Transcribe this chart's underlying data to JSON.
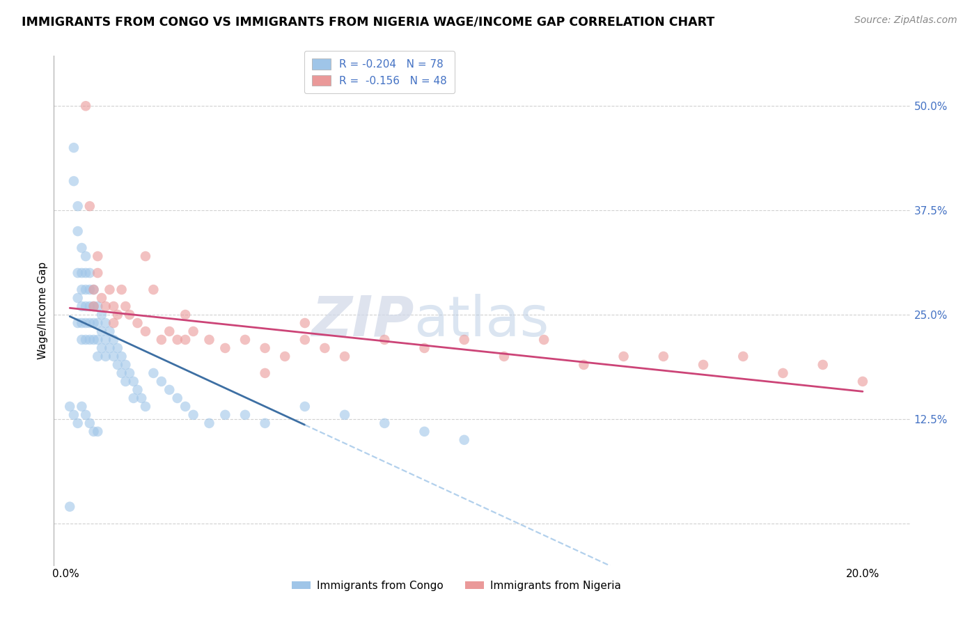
{
  "title": "IMMIGRANTS FROM CONGO VS IMMIGRANTS FROM NIGERIA WAGE/INCOME GAP CORRELATION CHART",
  "source": "Source: ZipAtlas.com",
  "ylabel": "Wage/Income Gap",
  "x_ticks": [
    0.0,
    0.04,
    0.08,
    0.12,
    0.16,
    0.2
  ],
  "x_tick_labels": [
    "0.0%",
    "",
    "",
    "",
    "",
    "20.0%"
  ],
  "y_ticks_right": [
    0.0,
    0.125,
    0.25,
    0.375,
    0.5
  ],
  "y_tick_labels_right": [
    "",
    "12.5%",
    "25.0%",
    "37.5%",
    "50.0%"
  ],
  "xlim": [
    -0.003,
    0.212
  ],
  "ylim": [
    -0.05,
    0.56
  ],
  "congo_color": "#9fc5e8",
  "nigeria_color": "#ea9999",
  "congo_line_color": "#3d6fa3",
  "nigeria_line_color": "#cc4477",
  "congo_R": -0.204,
  "congo_N": 78,
  "nigeria_R": -0.156,
  "nigeria_N": 48,
  "background_color": "#ffffff",
  "grid_color": "#cccccc",
  "watermark_zip": "ZIP",
  "watermark_atlas": "atlas",
  "legend_label_congo": "Immigrants from Congo",
  "legend_label_nigeria": "Immigrants from Nigeria",
  "congo_scatter_x": [
    0.001,
    0.002,
    0.002,
    0.003,
    0.003,
    0.003,
    0.003,
    0.003,
    0.004,
    0.004,
    0.004,
    0.004,
    0.004,
    0.004,
    0.005,
    0.005,
    0.005,
    0.005,
    0.005,
    0.005,
    0.006,
    0.006,
    0.006,
    0.006,
    0.006,
    0.007,
    0.007,
    0.007,
    0.007,
    0.008,
    0.008,
    0.008,
    0.008,
    0.009,
    0.009,
    0.009,
    0.01,
    0.01,
    0.01,
    0.011,
    0.011,
    0.012,
    0.012,
    0.013,
    0.013,
    0.014,
    0.014,
    0.015,
    0.015,
    0.016,
    0.017,
    0.017,
    0.018,
    0.019,
    0.02,
    0.022,
    0.024,
    0.026,
    0.028,
    0.03,
    0.032,
    0.036,
    0.04,
    0.045,
    0.05,
    0.06,
    0.07,
    0.08,
    0.09,
    0.1,
    0.001,
    0.002,
    0.003,
    0.004,
    0.005,
    0.006,
    0.007,
    0.008
  ],
  "congo_scatter_y": [
    0.02,
    0.45,
    0.41,
    0.38,
    0.35,
    0.3,
    0.27,
    0.24,
    0.33,
    0.3,
    0.28,
    0.26,
    0.24,
    0.22,
    0.32,
    0.3,
    0.28,
    0.26,
    0.24,
    0.22,
    0.3,
    0.28,
    0.26,
    0.24,
    0.22,
    0.28,
    0.26,
    0.24,
    0.22,
    0.26,
    0.24,
    0.22,
    0.2,
    0.25,
    0.23,
    0.21,
    0.24,
    0.22,
    0.2,
    0.23,
    0.21,
    0.22,
    0.2,
    0.21,
    0.19,
    0.2,
    0.18,
    0.19,
    0.17,
    0.18,
    0.17,
    0.15,
    0.16,
    0.15,
    0.14,
    0.18,
    0.17,
    0.16,
    0.15,
    0.14,
    0.13,
    0.12,
    0.13,
    0.13,
    0.12,
    0.14,
    0.13,
    0.12,
    0.11,
    0.1,
    0.14,
    0.13,
    0.12,
    0.14,
    0.13,
    0.12,
    0.11,
    0.11
  ],
  "nigeria_scatter_x": [
    0.005,
    0.006,
    0.007,
    0.008,
    0.009,
    0.01,
    0.011,
    0.012,
    0.013,
    0.014,
    0.015,
    0.016,
    0.018,
    0.02,
    0.022,
    0.024,
    0.026,
    0.028,
    0.03,
    0.032,
    0.036,
    0.04,
    0.045,
    0.05,
    0.055,
    0.06,
    0.065,
    0.07,
    0.08,
    0.09,
    0.1,
    0.11,
    0.12,
    0.13,
    0.14,
    0.15,
    0.16,
    0.17,
    0.18,
    0.19,
    0.2,
    0.008,
    0.012,
    0.02,
    0.03,
    0.05,
    0.007,
    0.06
  ],
  "nigeria_scatter_y": [
    0.5,
    0.38,
    0.28,
    0.3,
    0.27,
    0.26,
    0.28,
    0.26,
    0.25,
    0.28,
    0.26,
    0.25,
    0.24,
    0.23,
    0.28,
    0.22,
    0.23,
    0.22,
    0.22,
    0.23,
    0.22,
    0.21,
    0.22,
    0.21,
    0.2,
    0.22,
    0.21,
    0.2,
    0.22,
    0.21,
    0.22,
    0.2,
    0.22,
    0.19,
    0.2,
    0.2,
    0.19,
    0.2,
    0.18,
    0.19,
    0.17,
    0.32,
    0.24,
    0.32,
    0.25,
    0.18,
    0.26,
    0.24
  ],
  "congo_trend_x0": 0.001,
  "congo_trend_x1": 0.06,
  "congo_trend_y0": 0.248,
  "congo_trend_y1": 0.118,
  "nigeria_trend_x0": 0.001,
  "nigeria_trend_x1": 0.2,
  "nigeria_trend_y0": 0.258,
  "nigeria_trend_y1": 0.158
}
